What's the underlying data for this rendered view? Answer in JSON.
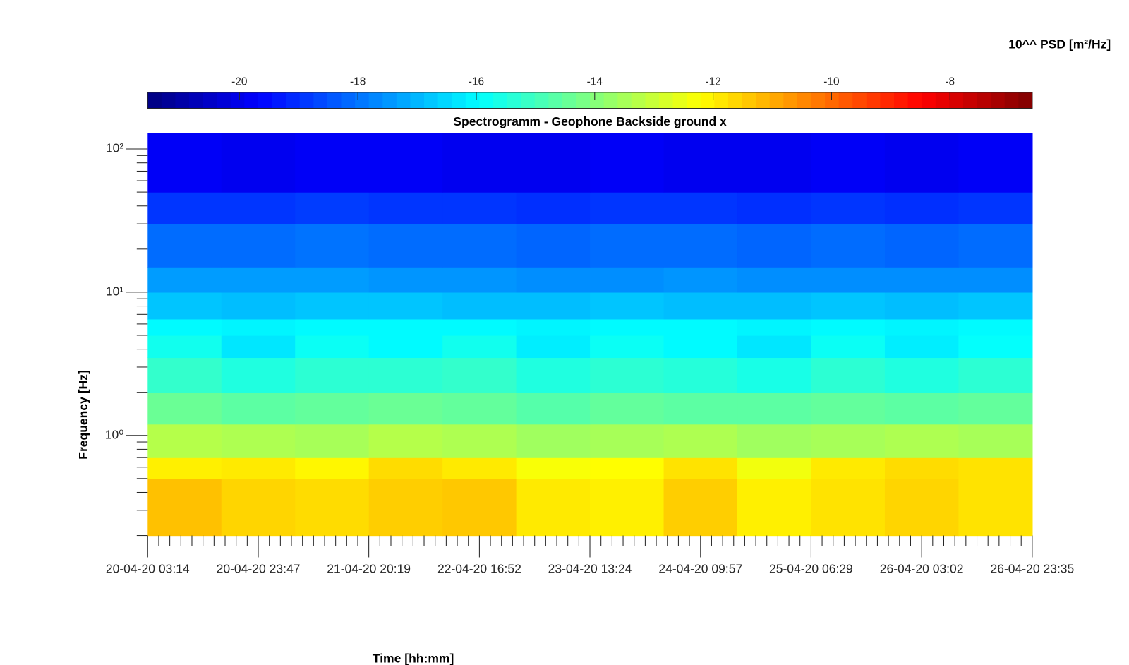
{
  "chart_data": {
    "type": "heatmap",
    "title": "Spectrogramm - Geophone Backside ground x",
    "colorbar_label": "10^^ PSD [m²/Hz]",
    "x_label": "Time [hh:mm]",
    "y_label": "Frequency [Hz]",
    "colormap": "jet",
    "log_y": true,
    "xlim": [
      "20-04-20 03:14",
      "26-04-20 23:35"
    ],
    "xticks": [
      "20-04-20 03:14",
      "20-04-20 23:47",
      "21-04-20 20:19",
      "22-04-20 16:52",
      "23-04-20 13:24",
      "24-04-20 09:57",
      "25-04-20 06:29",
      "26-04-20 03:02",
      "26-04-20 23:35"
    ],
    "ylim": [
      0.2,
      129
    ],
    "yticks": [
      {
        "value": 1,
        "label": "10⁰"
      },
      {
        "value": 10,
        "label": "10¹"
      },
      {
        "value": 100,
        "label": "10²"
      }
    ],
    "clim": [
      -21.55,
      -6.61
    ],
    "cticks": [
      -20,
      -18,
      -16,
      -14,
      -12,
      -10,
      -8
    ],
    "freq_edges": [
      0.2,
      0.5,
      0.7,
      1.2,
      2,
      3.5,
      5,
      6.5,
      10,
      15,
      30,
      50,
      129
    ],
    "z": [
      [
        -11.3,
        -11.6,
        -11.7,
        -11.5,
        -11.4,
        -11.9,
        -12.0,
        -11.5,
        -12.0,
        -11.8,
        -11.6,
        -11.8
      ],
      [
        -12.0,
        -11.9,
        -12.1,
        -11.7,
        -11.9,
        -12.3,
        -12.2,
        -11.8,
        -12.4,
        -11.9,
        -11.7,
        -11.8
      ],
      [
        -13.3,
        -13.4,
        -13.5,
        -13.3,
        -13.4,
        -13.6,
        -13.5,
        -13.4,
        -13.6,
        -13.5,
        -13.4,
        -13.5
      ],
      [
        -14.4,
        -14.6,
        -14.5,
        -14.4,
        -14.5,
        -14.7,
        -14.5,
        -14.6,
        -14.6,
        -14.5,
        -14.6,
        -14.5
      ],
      [
        -15.2,
        -15.5,
        -15.3,
        -15.3,
        -15.2,
        -15.5,
        -15.3,
        -15.4,
        -15.6,
        -15.3,
        -15.5,
        -15.3
      ],
      [
        -15.7,
        -16.3,
        -15.8,
        -16.0,
        -15.7,
        -16.2,
        -15.8,
        -16.0,
        -16.3,
        -15.8,
        -16.2,
        -15.9
      ],
      [
        -16.0,
        -16.1,
        -16.0,
        -16.0,
        -16.0,
        -16.1,
        -16.0,
        -16.0,
        -16.1,
        -16.0,
        -16.1,
        -16.0
      ],
      [
        -16.8,
        -16.9,
        -16.8,
        -16.8,
        -16.9,
        -16.9,
        -16.8,
        -16.9,
        -16.9,
        -16.8,
        -16.9,
        -16.8
      ],
      [
        -17.4,
        -17.4,
        -17.4,
        -17.5,
        -17.5,
        -17.6,
        -17.6,
        -17.5,
        -17.6,
        -17.6,
        -17.6,
        -17.6
      ],
      [
        -18.1,
        -18.1,
        -18.0,
        -18.1,
        -18.1,
        -18.2,
        -18.1,
        -18.1,
        -18.2,
        -18.1,
        -18.2,
        -18.1
      ],
      [
        -18.9,
        -18.9,
        -18.8,
        -18.9,
        -18.9,
        -19.0,
        -18.9,
        -18.9,
        -19.0,
        -18.9,
        -19.0,
        -18.9
      ],
      [
        -19.8,
        -19.9,
        -19.8,
        -19.8,
        -19.9,
        -19.9,
        -19.8,
        -19.9,
        -19.9,
        -19.8,
        -19.9,
        -19.8
      ]
    ]
  }
}
